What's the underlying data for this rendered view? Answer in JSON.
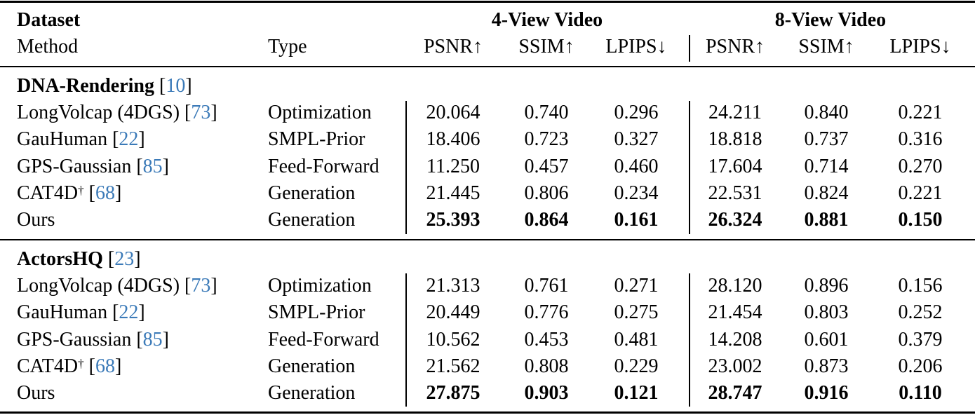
{
  "header": {
    "dataset_label": "Dataset",
    "method_label": "Method",
    "type_label": "Type",
    "group_4view": "4-View Video",
    "group_8view": "8-View Video",
    "metrics": [
      "PSNR↑",
      "SSIM↑",
      "LPIPS↓",
      "PSNR↑",
      "SSIM↑",
      "LPIPS↓"
    ]
  },
  "sections": [
    {
      "name": "DNA-Rendering",
      "ref": "10",
      "rows": [
        {
          "method": "LongVolcap (4DGS)",
          "dagger": "",
          "ref": "73",
          "type": "Optimization",
          "values": [
            "20.064",
            "0.740",
            "0.296",
            "24.211",
            "0.840",
            "0.221"
          ],
          "bold": false
        },
        {
          "method": "GauHuman",
          "dagger": "",
          "ref": "22",
          "type": "SMPL-Prior",
          "values": [
            "18.406",
            "0.723",
            "0.327",
            "18.818",
            "0.737",
            "0.316"
          ],
          "bold": false
        },
        {
          "method": "GPS-Gaussian",
          "dagger": "",
          "ref": "85",
          "type": "Feed-Forward",
          "values": [
            "11.250",
            "0.457",
            "0.460",
            "17.604",
            "0.714",
            "0.270"
          ],
          "bold": false
        },
        {
          "method": "CAT4D",
          "dagger": "†",
          "ref": "68",
          "type": "Generation",
          "values": [
            "21.445",
            "0.806",
            "0.234",
            "22.531",
            "0.824",
            "0.221"
          ],
          "bold": false
        },
        {
          "method": "Ours",
          "dagger": "",
          "ref": "",
          "type": "Generation",
          "values": [
            "25.393",
            "0.864",
            "0.161",
            "26.324",
            "0.881",
            "0.150"
          ],
          "bold": true
        }
      ]
    },
    {
      "name": "ActorsHQ",
      "ref": "23",
      "rows": [
        {
          "method": "LongVolcap (4DGS)",
          "dagger": "",
          "ref": "73",
          "type": "Optimization",
          "values": [
            "21.313",
            "0.761",
            "0.271",
            "28.120",
            "0.896",
            "0.156"
          ],
          "bold": false
        },
        {
          "method": "GauHuman",
          "dagger": "",
          "ref": "22",
          "type": "SMPL-Prior",
          "values": [
            "20.449",
            "0.776",
            "0.275",
            "21.454",
            "0.803",
            "0.252"
          ],
          "bold": false
        },
        {
          "method": "GPS-Gaussian",
          "dagger": "",
          "ref": "85",
          "type": "Feed-Forward",
          "values": [
            "10.562",
            "0.453",
            "0.481",
            "14.208",
            "0.601",
            "0.379"
          ],
          "bold": false
        },
        {
          "method": "CAT4D",
          "dagger": "†",
          "ref": "68",
          "type": "Generation",
          "values": [
            "21.562",
            "0.808",
            "0.229",
            "23.002",
            "0.873",
            "0.206"
          ],
          "bold": false
        },
        {
          "method": "Ours",
          "dagger": "",
          "ref": "",
          "type": "Generation",
          "values": [
            "27.875",
            "0.903",
            "0.121",
            "28.747",
            "0.916",
            "0.110"
          ],
          "bold": true
        }
      ]
    }
  ],
  "colors": {
    "citation": "#3b7ab8",
    "text": "#000000"
  }
}
